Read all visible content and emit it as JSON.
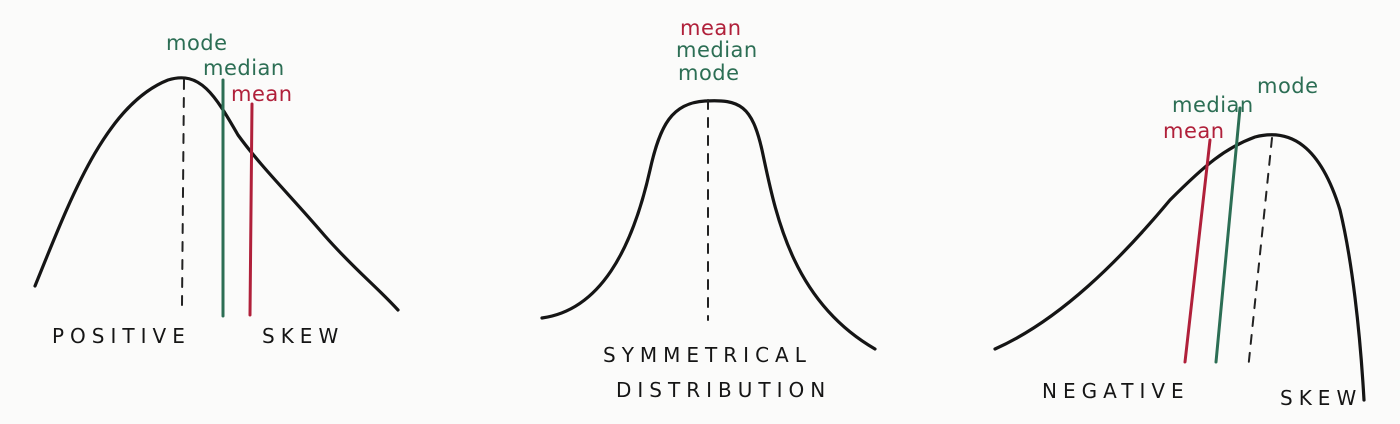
{
  "colors": {
    "ink": "#151515",
    "mean": "#b0203a",
    "median": "#2c6e54",
    "mode": "#2c6e54",
    "paper": "#fbfbfa"
  },
  "positive": {
    "label_mode": "mode",
    "label_median": "median",
    "label_mean": "mean",
    "caption_left": "POSITIVE",
    "caption_right": "SKEW"
  },
  "symmetric": {
    "label_mean": "mean",
    "label_median": "median",
    "label_mode": "mode",
    "caption_line1": "SYMMETRICAL",
    "caption_line2": "DISTRIBUTION"
  },
  "negative": {
    "label_mode": "mode",
    "label_median": "median",
    "label_mean": "mean",
    "caption_left": "NEGATIVE",
    "caption_right": "SKEW"
  }
}
